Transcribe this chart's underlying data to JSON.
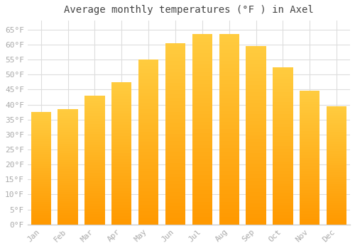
{
  "title": "Average monthly temperatures (°F ) in Axel",
  "months": [
    "Jan",
    "Feb",
    "Mar",
    "Apr",
    "May",
    "Jun",
    "Jul",
    "Aug",
    "Sep",
    "Oct",
    "Nov",
    "Dec"
  ],
  "values": [
    37.5,
    38.5,
    43,
    47.5,
    55,
    60.5,
    63.5,
    63.5,
    59.5,
    52.5,
    44.5,
    39.5
  ],
  "bar_color_top": "#FFB700",
  "bar_color_bottom": "#FFA500",
  "bar_color_light": "#FFD060",
  "background_color": "#ffffff",
  "grid_color": "#dddddd",
  "ylim": [
    0,
    68
  ],
  "yticks": [
    0,
    5,
    10,
    15,
    20,
    25,
    30,
    35,
    40,
    45,
    50,
    55,
    60,
    65
  ],
  "title_fontsize": 10,
  "tick_fontsize": 8,
  "tick_color": "#aaaaaa",
  "spine_color": "#cccccc"
}
